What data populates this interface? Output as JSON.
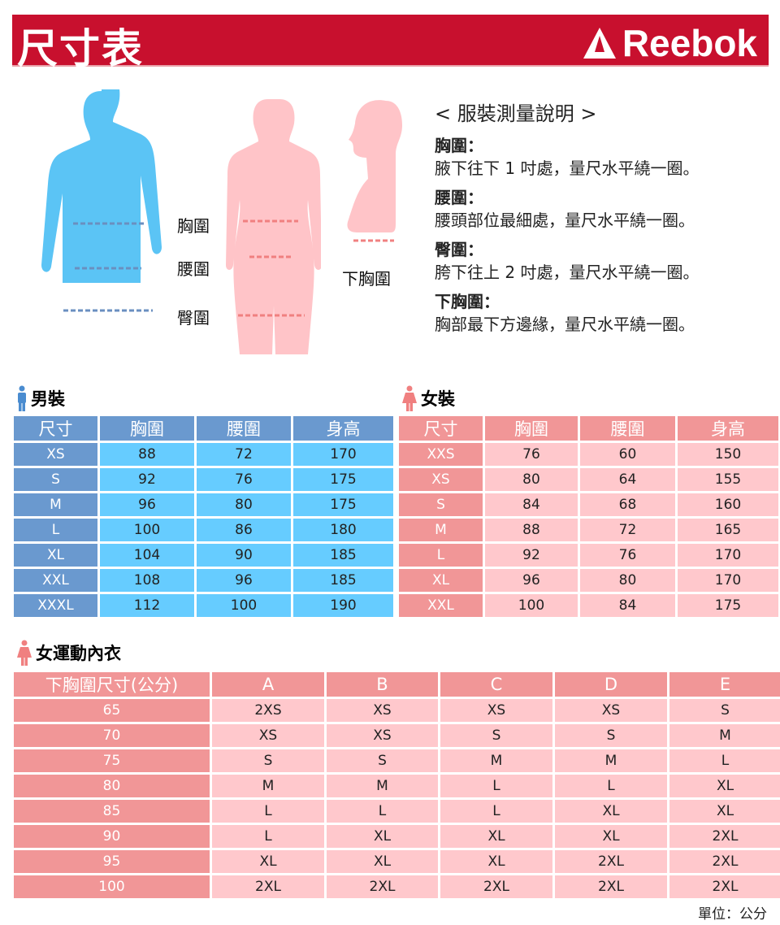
{
  "header": {
    "title": "尺寸表",
    "brand": "Reebok"
  },
  "figures": {
    "labels": {
      "chest": "胸圍",
      "waist": "腰圍",
      "hip": "臀圍",
      "underbust": "下胸圍"
    }
  },
  "instructions": {
    "title": "< 服裝測量說明 >",
    "items": [
      {
        "key": "胸圍：",
        "text": "腋下往下 1 吋處，量尺水平繞一圈。"
      },
      {
        "key": "腰圍：",
        "text": "腰頭部位最細處，量尺水平繞一圈。"
      },
      {
        "key": "臀圍：",
        "text": "胯下往上 2 吋處，量尺水平繞一圈。"
      },
      {
        "key": "下胸圍：",
        "text": "胸部最下方邊緣，量尺水平繞一圈。"
      }
    ]
  },
  "men": {
    "title": "男裝",
    "headers": [
      "尺寸",
      "胸圍",
      "腰圍",
      "身高"
    ],
    "rows": [
      [
        "XS",
        "88",
        "72",
        "170"
      ],
      [
        "S",
        "92",
        "76",
        "175"
      ],
      [
        "M",
        "96",
        "80",
        "175"
      ],
      [
        "L",
        "100",
        "86",
        "180"
      ],
      [
        "XL",
        "104",
        "90",
        "185"
      ],
      [
        "XXL",
        "108",
        "96",
        "185"
      ],
      [
        "XXXL",
        "112",
        "100",
        "190"
      ]
    ]
  },
  "women": {
    "title": "女裝",
    "headers": [
      "尺寸",
      "胸圍",
      "腰圍",
      "身高"
    ],
    "rows": [
      [
        "XXS",
        "76",
        "60",
        "150"
      ],
      [
        "XS",
        "80",
        "64",
        "155"
      ],
      [
        "S",
        "84",
        "68",
        "160"
      ],
      [
        "M",
        "88",
        "72",
        "165"
      ],
      [
        "L",
        "92",
        "76",
        "170"
      ],
      [
        "XL",
        "96",
        "80",
        "170"
      ],
      [
        "XXL",
        "100",
        "84",
        "175"
      ]
    ]
  },
  "bra": {
    "title": "女運動內衣",
    "headers": [
      "下胸圍尺寸(公分)",
      "A",
      "B",
      "C",
      "D",
      "E"
    ],
    "rows": [
      [
        "65",
        "2XS",
        "XS",
        "XS",
        "XS",
        "S"
      ],
      [
        "70",
        "XS",
        "XS",
        "S",
        "S",
        "M"
      ],
      [
        "75",
        "S",
        "S",
        "M",
        "M",
        "L"
      ],
      [
        "80",
        "M",
        "M",
        "L",
        "L",
        "XL"
      ],
      [
        "85",
        "L",
        "L",
        "L",
        "XL",
        "XL"
      ],
      [
        "90",
        "L",
        "XL",
        "XL",
        "XL",
        "2XL"
      ],
      [
        "95",
        "XL",
        "XL",
        "XL",
        "2XL",
        "2XL"
      ],
      [
        "100",
        "2XL",
        "2XL",
        "2XL",
        "2XL",
        "2XL"
      ]
    ]
  },
  "unit": "單位：公分",
  "colors": {
    "brand": "#c8102e",
    "men_header": "#6a99cf",
    "men_cell": "#66ccff",
    "women_header": "#f19697",
    "women_cell": "#ffc8cc"
  }
}
